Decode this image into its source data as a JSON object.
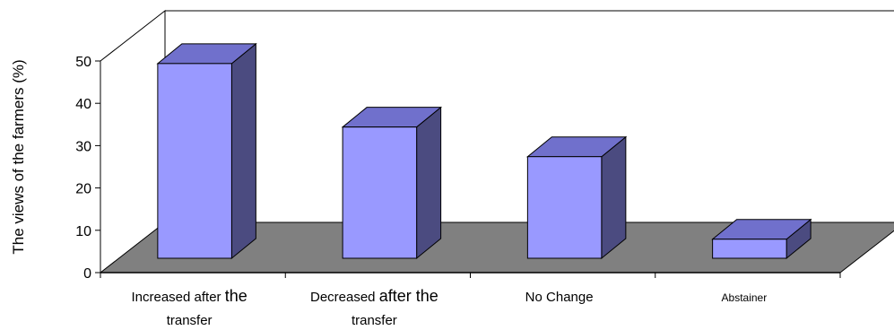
{
  "chart_data": {
    "type": "bar",
    "ylabel": "The views of the farmers (%)",
    "xlabel": "",
    "ylim": [
      0,
      50
    ],
    "yticks": [
      0,
      10,
      20,
      30,
      40,
      50
    ],
    "grid": false,
    "three_d": true,
    "categories": [
      {
        "parts": [
          {
            "text": "Increased after ",
            "size": "normal"
          },
          {
            "text": "the",
            "size": "large"
          }
        ],
        "line2": "transfer"
      },
      {
        "parts": [
          {
            "text": "Decreased ",
            "size": "normal"
          },
          {
            "text": "after the",
            "size": "large"
          }
        ],
        "line2": "transfer"
      },
      {
        "parts": [
          {
            "text": "No Change",
            "size": "normal"
          }
        ],
        "line2": ""
      },
      {
        "parts": [
          {
            "text": "Abstainer",
            "size": "small"
          }
        ],
        "line2": ""
      }
    ],
    "values": [
      46,
      31,
      24,
      4.5
    ],
    "colors": {
      "bar_front": "#9999ff",
      "bar_top": "#7070cc",
      "bar_side": "#4b4b80",
      "floor": "#808080",
      "outline": "#000000"
    }
  }
}
